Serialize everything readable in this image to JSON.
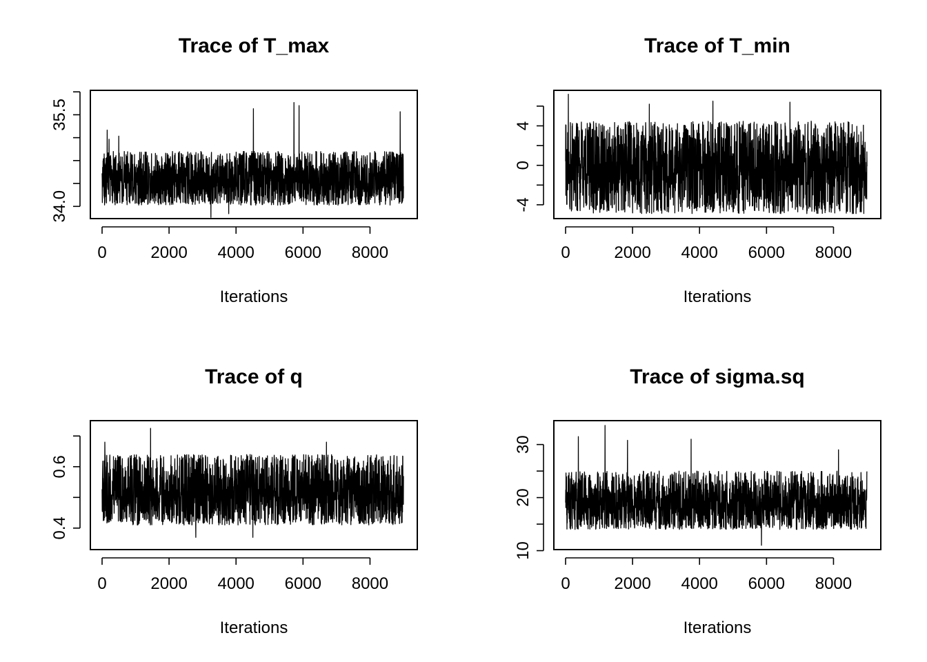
{
  "chart_data": [
    {
      "type": "line",
      "title": "Trace of T_max",
      "xlabel": "Iterations",
      "xlim": [
        0,
        9000
      ],
      "ylim": [
        33.8,
        35.9
      ],
      "x_ticks": [
        0,
        2000,
        4000,
        6000,
        8000
      ],
      "x_tick_labels": [
        "0",
        "2000",
        "4000",
        "6000",
        "8000"
      ],
      "y_ticks": [
        34.0,
        34.375,
        34.75,
        35.125,
        35.5,
        35.875
      ],
      "y_tick_labels": [
        "34.0",
        "",
        "",
        "",
        "35.5",
        ""
      ],
      "series": [
        {
          "x_start": 0,
          "x_end": 9000,
          "center": 34.45,
          "low": 34.02,
          "high": 34.9,
          "spikes": [
            [
              150,
              35.25
            ],
            [
              210,
              35.1
            ],
            [
              500,
              35.15
            ],
            [
              3250,
              33.82
            ],
            [
              3780,
              33.88
            ],
            [
              4520,
              35.6
            ],
            [
              5730,
              35.7
            ],
            [
              5880,
              35.65
            ],
            [
              8900,
              35.55
            ]
          ]
        }
      ]
    },
    {
      "type": "line",
      "title": "Trace of T_min",
      "xlabel": "Iterations",
      "xlim": [
        0,
        9000
      ],
      "ylim": [
        -5.4,
        7.6
      ],
      "x_ticks": [
        0,
        2000,
        4000,
        6000,
        8000
      ],
      "x_tick_labels": [
        "0",
        "2000",
        "4000",
        "6000",
        "8000"
      ],
      "y_ticks": [
        -4,
        -2,
        0,
        2,
        4,
        6
      ],
      "y_tick_labels": [
        "-4",
        "",
        "0",
        "",
        "4",
        ""
      ],
      "series": [
        {
          "x_start": 0,
          "x_end": 9000,
          "center": -0.3,
          "low": -4.9,
          "high": 4.5,
          "spikes": [
            [
              80,
              7.2
            ],
            [
              2500,
              6.2
            ],
            [
              4400,
              6.5
            ],
            [
              6700,
              6.4
            ]
          ]
        }
      ]
    },
    {
      "type": "line",
      "title": "Trace of q",
      "xlabel": "Iterations",
      "xlim": [
        0,
        9000
      ],
      "ylim": [
        0.33,
        0.75
      ],
      "x_ticks": [
        0,
        2000,
        4000,
        6000,
        8000
      ],
      "x_tick_labels": [
        "0",
        "2000",
        "4000",
        "6000",
        "8000"
      ],
      "y_ticks": [
        0.4,
        0.5,
        0.6,
        0.7
      ],
      "y_tick_labels": [
        "0.4",
        "",
        "0.6",
        ""
      ],
      "series": [
        {
          "x_start": 0,
          "x_end": 9000,
          "center": 0.515,
          "low": 0.41,
          "high": 0.64,
          "spikes": [
            [
              80,
              0.68
            ],
            [
              1450,
              0.725
            ],
            [
              2800,
              0.37
            ],
            [
              4500,
              0.37
            ],
            [
              6700,
              0.68
            ]
          ]
        }
      ]
    },
    {
      "type": "line",
      "title": "Trace of sigma.sq",
      "xlabel": "Iterations",
      "xlim": [
        0,
        9000
      ],
      "ylim": [
        10.2,
        34.5
      ],
      "x_ticks": [
        0,
        2000,
        4000,
        6000,
        8000
      ],
      "x_tick_labels": [
        "0",
        "2000",
        "4000",
        "6000",
        "8000"
      ],
      "y_ticks": [
        10,
        15,
        20,
        25,
        30
      ],
      "y_tick_labels": [
        "10",
        "",
        "20",
        "",
        "30"
      ],
      "series": [
        {
          "x_start": 0,
          "x_end": 9000,
          "center": 18.8,
          "low": 14.0,
          "high": 25.0,
          "spikes": [
            [
              380,
              31.5
            ],
            [
              1180,
              33.6
            ],
            [
              1850,
              30.8
            ],
            [
              3750,
              31.0
            ],
            [
              5850,
              11.0
            ],
            [
              8150,
              29.0
            ]
          ]
        }
      ]
    }
  ]
}
